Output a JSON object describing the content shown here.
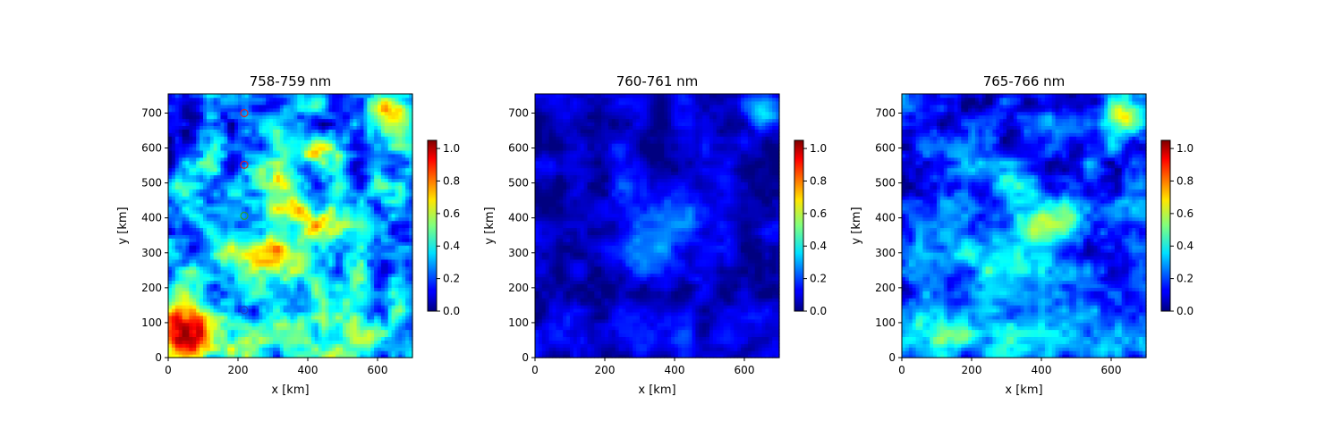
{
  "chart_data": [
    {
      "type": "heatmap",
      "title": "758-759 nm",
      "xlabel": "x [km]",
      "ylabel": "y [km]",
      "xlim": [
        0,
        700
      ],
      "ylim": [
        0,
        755
      ],
      "xticks": [
        0,
        200,
        400,
        600
      ],
      "yticks": [
        0,
        100,
        200,
        300,
        400,
        500,
        600,
        700
      ],
      "colormap": "jet",
      "clim": [
        0.0,
        1.05
      ],
      "colorbar_ticks": [
        "0.0",
        "0.2",
        "0.4",
        "0.6",
        "0.8",
        "1.0"
      ],
      "background_level": 0.28,
      "markers": [
        {
          "x": 218,
          "y": 700,
          "color": "#d62728"
        },
        {
          "x": 218,
          "y": 552,
          "color": "#d62728"
        },
        {
          "x": 218,
          "y": 406,
          "color": "#2ca02c"
        },
        {
          "x": 218,
          "y": 136,
          "color": "#1f3fbf"
        }
      ],
      "features": [
        {
          "x": 60,
          "y": 70,
          "rx": 90,
          "ry": 95,
          "value": 0.62
        },
        {
          "x": 300,
          "y": 280,
          "rx": 110,
          "ry": 80,
          "value": 0.45
        },
        {
          "x": 420,
          "y": 400,
          "rx": 90,
          "ry": 60,
          "value": 0.4
        },
        {
          "x": 320,
          "y": 520,
          "rx": 55,
          "ry": 70,
          "value": 0.38
        },
        {
          "x": 640,
          "y": 700,
          "rx": 60,
          "ry": 60,
          "value": 0.55
        },
        {
          "x": 420,
          "y": 590,
          "rx": 60,
          "ry": 40,
          "value": 0.3
        },
        {
          "x": 350,
          "y": 60,
          "rx": 300,
          "ry": 60,
          "value": 0.3
        },
        {
          "x": 130,
          "y": 680,
          "rx": 120,
          "ry": 80,
          "value": -0.12
        }
      ]
    },
    {
      "type": "heatmap",
      "title": "760-761 nm",
      "xlabel": "x [km]",
      "ylabel": "y [km]",
      "xlim": [
        0,
        700
      ],
      "ylim": [
        0,
        755
      ],
      "xticks": [
        0,
        200,
        400,
        600
      ],
      "yticks": [
        0,
        100,
        200,
        300,
        400,
        500,
        600,
        700
      ],
      "colormap": "jet",
      "clim": [
        0.0,
        1.05
      ],
      "colorbar_ticks": [
        "0.0",
        "0.2",
        "0.4",
        "0.6",
        "0.8",
        "1.0"
      ],
      "background_level": 0.06,
      "markers": [],
      "features": [
        {
          "x": 300,
          "y": 300,
          "rx": 90,
          "ry": 70,
          "value": 0.25
        },
        {
          "x": 420,
          "y": 400,
          "rx": 90,
          "ry": 60,
          "value": 0.15
        },
        {
          "x": 650,
          "y": 700,
          "rx": 50,
          "ry": 50,
          "value": 0.3
        },
        {
          "x": 250,
          "y": 520,
          "rx": 40,
          "ry": 120,
          "value": 0.12
        },
        {
          "x": 350,
          "y": 60,
          "rx": 300,
          "ry": 60,
          "value": 0.08
        }
      ]
    },
    {
      "type": "heatmap",
      "title": "765-766 nm",
      "xlabel": "x [km]",
      "ylabel": "y [km]",
      "xlim": [
        0,
        700
      ],
      "ylim": [
        0,
        755
      ],
      "xticks": [
        0,
        200,
        400,
        600
      ],
      "yticks": [
        0,
        100,
        200,
        300,
        400,
        500,
        600,
        700
      ],
      "colormap": "jet",
      "clim": [
        0.0,
        1.05
      ],
      "colorbar_ticks": [
        "0.0",
        "0.2",
        "0.4",
        "0.6",
        "0.8",
        "1.0"
      ],
      "background_level": 0.18,
      "markers": [],
      "features": [
        {
          "x": 300,
          "y": 290,
          "rx": 110,
          "ry": 80,
          "value": 0.35
        },
        {
          "x": 420,
          "y": 400,
          "rx": 90,
          "ry": 60,
          "value": 0.28
        },
        {
          "x": 60,
          "y": 70,
          "rx": 100,
          "ry": 90,
          "value": 0.25
        },
        {
          "x": 640,
          "y": 700,
          "rx": 60,
          "ry": 60,
          "value": 0.45
        },
        {
          "x": 350,
          "y": 60,
          "rx": 300,
          "ry": 60,
          "value": 0.22
        },
        {
          "x": 320,
          "y": 520,
          "rx": 55,
          "ry": 70,
          "value": 0.2
        },
        {
          "x": 130,
          "y": 680,
          "rx": 120,
          "ry": 80,
          "value": -0.1
        }
      ]
    }
  ]
}
